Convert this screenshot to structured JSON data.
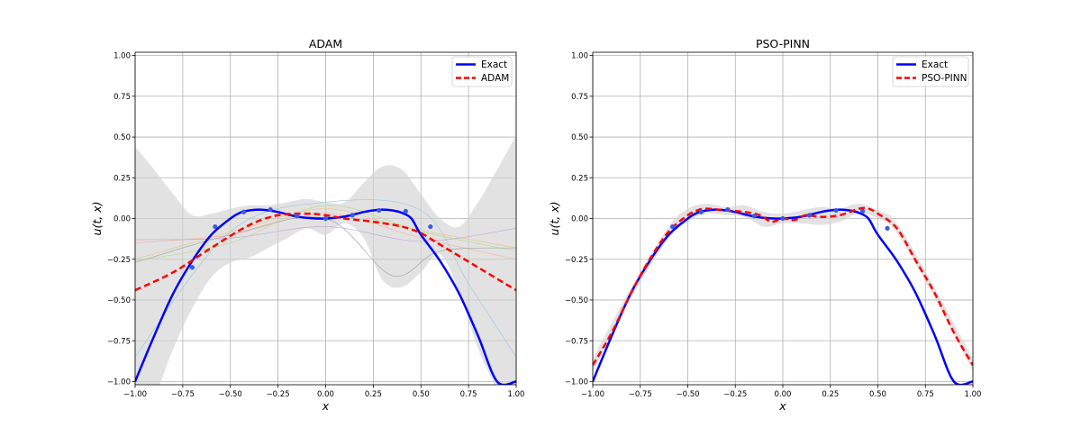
{
  "chart_data": [
    {
      "type": "line",
      "title": "ADAM",
      "xlabel": "x",
      "ylabel": "u(t, x)",
      "xlim": [
        -1.0,
        1.0
      ],
      "ylim": [
        -1.02,
        1.02
      ],
      "xticks": [
        "−1.00",
        "−0.75",
        "−0.50",
        "−0.25",
        "0.00",
        "0.25",
        "0.50",
        "0.75",
        "1.00"
      ],
      "yticks": [
        "−1.00",
        "−0.75",
        "−0.50",
        "−0.25",
        "0.00",
        "0.25",
        "0.50",
        "0.75",
        "1.00"
      ],
      "grid": true,
      "legend": "top-right",
      "series": [
        {
          "name": "Exact",
          "color": "#0000ff",
          "style": "solid",
          "x": [
            -1.0,
            -0.9,
            -0.8,
            -0.7,
            -0.6,
            -0.5,
            -0.45,
            -0.4,
            -0.35,
            -0.3,
            -0.25,
            -0.2,
            -0.15,
            -0.1,
            -0.05,
            0.0,
            0.05,
            0.1,
            0.15,
            0.2,
            0.25,
            0.3,
            0.35,
            0.4,
            0.45,
            0.5,
            0.6,
            0.7,
            0.8,
            0.9,
            1.0
          ],
          "y": [
            -1.0,
            -0.72,
            -0.46,
            -0.26,
            -0.1,
            0.0,
            0.035,
            0.05,
            0.055,
            0.05,
            0.04,
            0.025,
            0.012,
            0.004,
            0.0,
            0.0,
            0.004,
            0.012,
            0.025,
            0.04,
            0.05,
            0.055,
            0.05,
            0.035,
            0.0,
            -0.1,
            -0.26,
            -0.46,
            -0.72,
            -1.0,
            -1.0
          ]
        },
        {
          "name": "ADAM",
          "color": "#ff0000",
          "style": "dashed",
          "x": [
            -1.0,
            -0.8,
            -0.6,
            -0.4,
            -0.25,
            -0.1,
            0.0,
            0.1,
            0.25,
            0.4,
            0.5,
            0.6,
            0.8,
            1.0
          ],
          "y": [
            -0.44,
            -0.33,
            -0.18,
            -0.04,
            0.02,
            0.03,
            0.02,
            0.0,
            -0.02,
            -0.05,
            -0.09,
            -0.16,
            -0.3,
            -0.44
          ]
        }
      ],
      "markers": {
        "color": "#3b5bdb",
        "x": [
          -0.7,
          -0.58,
          -0.43,
          -0.29,
          -0.15,
          0.0,
          0.14,
          0.28,
          0.42,
          0.55
        ],
        "y": [
          -0.3,
          -0.05,
          0.04,
          0.055,
          0.015,
          0.0,
          0.02,
          0.05,
          0.045,
          -0.05
        ]
      },
      "band": {
        "color": "#d3d3d3",
        "x": [
          -1.0,
          -0.9,
          -0.8,
          -0.7,
          -0.6,
          -0.5,
          -0.4,
          -0.3,
          -0.2,
          -0.1,
          0.0,
          0.1,
          0.2,
          0.3,
          0.4,
          0.5,
          0.6,
          0.7,
          0.8,
          0.9,
          1.0
        ],
        "upper": [
          0.44,
          0.3,
          0.15,
          0.02,
          0.03,
          0.06,
          0.08,
          0.08,
          0.1,
          0.12,
          0.1,
          0.1,
          0.22,
          0.32,
          0.3,
          0.15,
          0.0,
          -0.05,
          0.1,
          0.3,
          0.51
        ],
        "lower": [
          -1.3,
          -1.1,
          -0.8,
          -0.55,
          -0.36,
          -0.27,
          -0.24,
          -0.18,
          -0.12,
          -0.06,
          -0.1,
          -0.03,
          -0.12,
          -0.38,
          -0.42,
          -0.33,
          -0.22,
          -0.45,
          -0.8,
          -1.05,
          -1.3
        ]
      },
      "thin_lines": [
        {
          "color": "#9ecae1",
          "x": [
            -1.0,
            -0.5,
            0.0,
            0.5,
            0.75,
            1.0
          ],
          "y": [
            -0.85,
            -0.08,
            0.1,
            0.05,
            -0.4,
            -0.85
          ]
        },
        {
          "color": "#f7b6a0",
          "x": [
            -1.0,
            -0.5,
            0.0,
            0.5,
            1.0
          ],
          "y": [
            -0.15,
            -0.1,
            0.03,
            -0.12,
            -0.25
          ]
        },
        {
          "color": "#b9dd8f",
          "x": [
            -1.0,
            -0.5,
            0.0,
            0.5,
            1.0
          ],
          "y": [
            -0.26,
            -0.15,
            0.08,
            -0.08,
            -0.2
          ]
        },
        {
          "color": "#e6c890",
          "x": [
            -1.0,
            -0.4,
            0.0,
            0.4,
            1.0
          ],
          "y": [
            -0.25,
            -0.05,
            0.06,
            -0.05,
            -0.18
          ]
        },
        {
          "color": "#c5a8d8",
          "x": [
            -1.0,
            -0.5,
            0.0,
            0.5,
            1.0
          ],
          "y": [
            -0.13,
            -0.12,
            -0.05,
            -0.14,
            -0.06
          ]
        },
        {
          "color": "#aaaaaa",
          "x": [
            -1.0,
            -0.5,
            0.0,
            0.35,
            0.6,
            1.0
          ],
          "y": [
            -0.27,
            -0.1,
            0.0,
            -0.35,
            -0.2,
            -0.18
          ]
        }
      ]
    },
    {
      "type": "line",
      "title": "PSO-PINN",
      "xlabel": "x",
      "ylabel": "u(t, x)",
      "xlim": [
        -1.0,
        1.0
      ],
      "ylim": [
        -1.02,
        1.02
      ],
      "xticks": [
        "−1.00",
        "−0.75",
        "−0.50",
        "−0.25",
        "0.00",
        "0.25",
        "0.50",
        "0.75",
        "1.00"
      ],
      "yticks": [
        "−1.00",
        "−0.75",
        "−0.50",
        "−0.25",
        "0.00",
        "0.25",
        "0.50",
        "0.75",
        "1.00"
      ],
      "grid": true,
      "legend": "top-right",
      "series": [
        {
          "name": "Exact",
          "color": "#0000ff",
          "style": "solid",
          "x": [
            -1.0,
            -0.9,
            -0.8,
            -0.7,
            -0.6,
            -0.5,
            -0.45,
            -0.4,
            -0.35,
            -0.3,
            -0.25,
            -0.2,
            -0.15,
            -0.1,
            -0.05,
            0.0,
            0.05,
            0.1,
            0.15,
            0.2,
            0.25,
            0.3,
            0.35,
            0.4,
            0.45,
            0.5,
            0.6,
            0.7,
            0.8,
            0.9,
            1.0
          ],
          "y": [
            -1.0,
            -0.72,
            -0.46,
            -0.26,
            -0.1,
            0.0,
            0.035,
            0.05,
            0.055,
            0.05,
            0.04,
            0.025,
            0.012,
            0.004,
            0.0,
            0.0,
            0.004,
            0.012,
            0.025,
            0.04,
            0.05,
            0.055,
            0.05,
            0.035,
            0.0,
            -0.1,
            -0.26,
            -0.46,
            -0.72,
            -1.0,
            -1.0
          ]
        },
        {
          "name": "PSO-PINN",
          "color": "#ff0000",
          "style": "dashed",
          "x": [
            -1.0,
            -0.9,
            -0.8,
            -0.7,
            -0.6,
            -0.5,
            -0.45,
            -0.4,
            -0.3,
            -0.2,
            -0.12,
            -0.06,
            0.0,
            0.06,
            0.12,
            0.2,
            0.3,
            0.4,
            0.45,
            0.5,
            0.6,
            0.7,
            0.8,
            0.9,
            1.0
          ],
          "y": [
            -0.9,
            -0.7,
            -0.46,
            -0.25,
            -0.08,
            0.02,
            0.05,
            0.06,
            0.05,
            0.04,
            0.02,
            -0.02,
            0.0,
            -0.01,
            0.02,
            0.01,
            0.02,
            0.06,
            0.06,
            0.03,
            -0.06,
            -0.26,
            -0.46,
            -0.7,
            -0.9
          ]
        }
      ],
      "markers": {
        "color": "#3b5bdb",
        "x": [
          -0.58,
          -0.43,
          -0.29,
          -0.15,
          0.0,
          0.14,
          0.28,
          0.42,
          0.55
        ],
        "y": [
          -0.05,
          0.04,
          0.055,
          0.015,
          0.0,
          0.02,
          0.05,
          0.045,
          -0.06
        ]
      },
      "band": {
        "color": "#d3d3d3",
        "x": [
          -1.0,
          -0.8,
          -0.6,
          -0.5,
          -0.4,
          -0.3,
          -0.2,
          -0.1,
          0.0,
          0.1,
          0.2,
          0.3,
          0.4,
          0.5,
          0.6,
          0.8,
          1.0
        ],
        "upper": [
          -0.86,
          -0.43,
          -0.05,
          0.06,
          0.09,
          0.07,
          0.08,
          0.04,
          0.03,
          0.05,
          0.07,
          0.06,
          0.09,
          0.05,
          -0.03,
          -0.43,
          -0.86
        ],
        "lower": [
          -0.94,
          -0.49,
          -0.12,
          -0.02,
          0.03,
          0.02,
          0.01,
          -0.05,
          -0.03,
          -0.03,
          -0.04,
          -0.02,
          0.03,
          0.0,
          -0.09,
          -0.49,
          -0.94
        ]
      },
      "thin_lines": []
    }
  ]
}
